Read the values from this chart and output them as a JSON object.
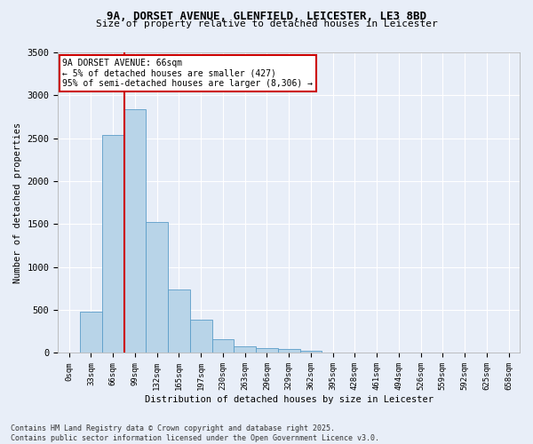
{
  "title_line1": "9A, DORSET AVENUE, GLENFIELD, LEICESTER, LE3 8BD",
  "title_line2": "Size of property relative to detached houses in Leicester",
  "xlabel": "Distribution of detached houses by size in Leicester",
  "ylabel": "Number of detached properties",
  "bar_color": "#b8d4e8",
  "bar_edge_color": "#5a9dc8",
  "categories": [
    "0sqm",
    "33sqm",
    "66sqm",
    "99sqm",
    "132sqm",
    "165sqm",
    "197sqm",
    "230sqm",
    "263sqm",
    "296sqm",
    "329sqm",
    "362sqm",
    "395sqm",
    "428sqm",
    "461sqm",
    "494sqm",
    "526sqm",
    "559sqm",
    "592sqm",
    "625sqm",
    "658sqm"
  ],
  "values": [
    10,
    480,
    2540,
    2840,
    1530,
    740,
    390,
    155,
    80,
    55,
    45,
    30,
    0,
    0,
    0,
    0,
    0,
    0,
    0,
    0,
    0
  ],
  "ylim": [
    0,
    3500
  ],
  "yticks": [
    0,
    500,
    1000,
    1500,
    2000,
    2500,
    3000,
    3500
  ],
  "annotation_text": "9A DORSET AVENUE: 66sqm\n← 5% of detached houses are smaller (427)\n95% of semi-detached houses are larger (8,306) →",
  "vline_x_index": 2,
  "annotation_box_color": "#ffffff",
  "annotation_box_edge": "#cc0000",
  "background_color": "#e8eef8",
  "grid_color": "#ffffff",
  "footer_line1": "Contains HM Land Registry data © Crown copyright and database right 2025.",
  "footer_line2": "Contains public sector information licensed under the Open Government Licence v3.0."
}
